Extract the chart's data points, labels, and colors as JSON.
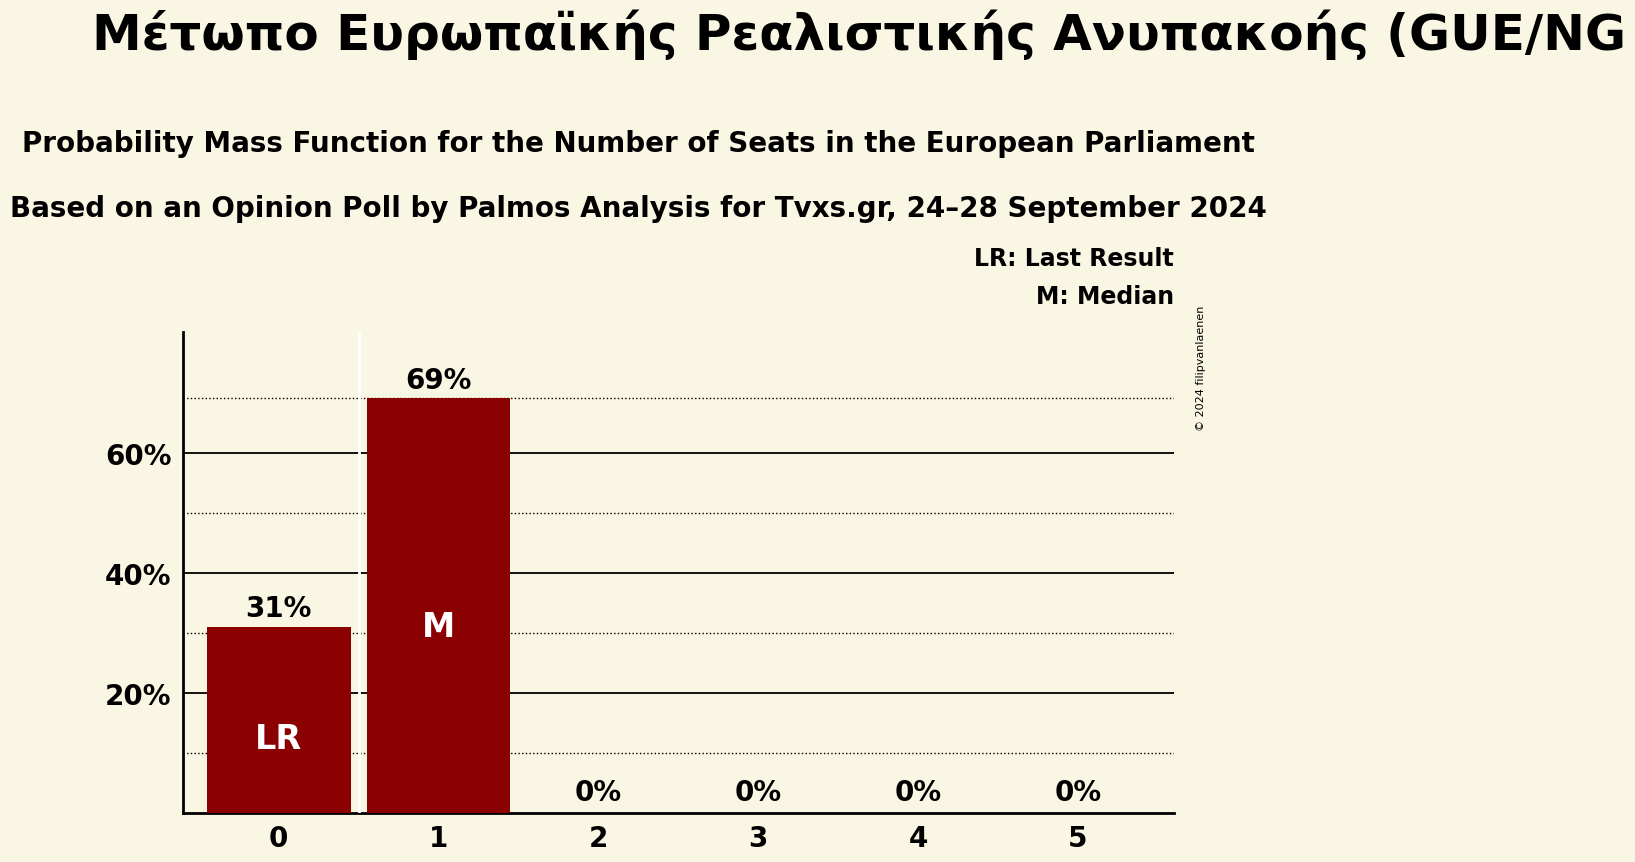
{
  "title_main": "Μέτωπο Ευρωπαϊκής Ρεαλιστικής Ανυπακοής (GUE/NG",
  "title_line1": "Probability Mass Function for the Number of Seats in the European Parliament",
  "title_line2": "Based on an Opinion Poll by Palmos Analysis for Tvxs.gr, 24–28 September 2024",
  "categories": [
    0,
    1,
    2,
    3,
    4,
    5
  ],
  "values": [
    0.31,
    0.69,
    0.0,
    0.0,
    0.0,
    0.0
  ],
  "bar_color": "#8b0000",
  "background_color": "#faf6e4",
  "label_LR": "LR",
  "label_M": "M",
  "lr_value": 0.31,
  "median_value": 0.69,
  "bar_labels": [
    "31%",
    "69%",
    "0%",
    "0%",
    "0%",
    "0%"
  ],
  "legend_lr": "LR: Last Result",
  "legend_m": "M: Median",
  "ylim": [
    0,
    0.8
  ],
  "yticks": [
    0.2,
    0.4,
    0.6
  ],
  "ytick_labels": [
    "20%",
    "40%",
    "60%"
  ],
  "copyright": "© 2024 filipvanlaenen",
  "dotted_line_values": [
    0.69,
    0.5,
    0.3,
    0.1
  ],
  "solid_line_values": [
    0.6,
    0.4,
    0.2
  ],
  "title_main_fontsize": 36,
  "title_sub1_fontsize": 20,
  "title_sub2_fontsize": 20,
  "bar_label_fontsize": 20,
  "inside_label_fontsize": 24,
  "tick_fontsize": 20,
  "legend_fontsize": 17
}
